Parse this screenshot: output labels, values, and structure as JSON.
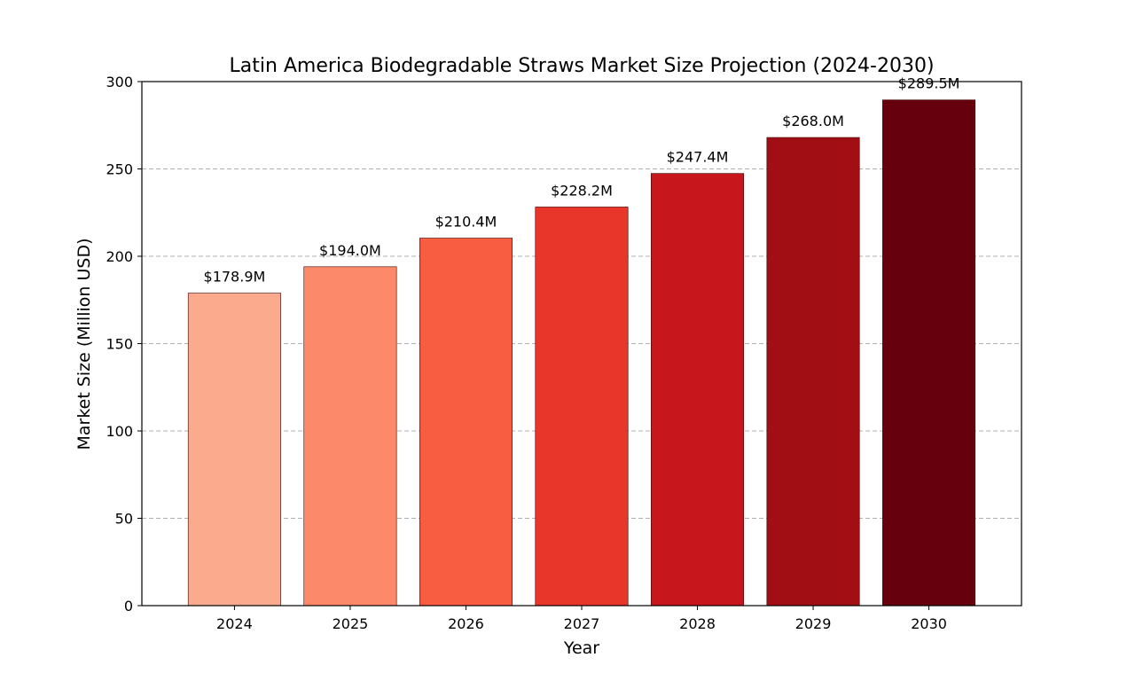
{
  "chart_data": {
    "type": "bar",
    "title": "Latin America Biodegradable Straws Market Size Projection (2024-2030)",
    "xlabel": "Year",
    "ylabel": "Market Size (Million USD)",
    "categories": [
      "2024",
      "2025",
      "2026",
      "2027",
      "2028",
      "2029",
      "2030"
    ],
    "values": [
      178.9,
      194.0,
      210.4,
      228.2,
      247.4,
      268.0,
      289.5
    ],
    "data_labels": [
      "$178.9M",
      "$194.0M",
      "$210.4M",
      "$228.2M",
      "$247.4M",
      "$268.0M",
      "$289.5M"
    ],
    "colors": [
      "#fcaa8e",
      "#fc8a6a",
      "#f85d42",
      "#e8362a",
      "#c8171c",
      "#a10f15",
      "#67000d"
    ],
    "ylim": [
      0,
      300
    ],
    "yticks": [
      0,
      50,
      100,
      150,
      200,
      250,
      300
    ],
    "ytick_labels": [
      "0",
      "50",
      "100",
      "150",
      "200",
      "250",
      "300"
    ],
    "grid": "y-dashed",
    "legend": "none"
  }
}
